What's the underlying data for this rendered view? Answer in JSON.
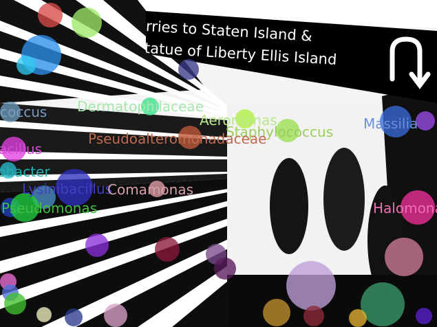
{
  "scene": {
    "background_color": "#ffffff",
    "foreground_color": "#000000"
  },
  "sign": {
    "line1": "rries to Staten Island &",
    "line2": "tatue of Liberty  Ellis Island",
    "arrow_icon": "u-turn-arrow-icon"
  },
  "labels": [
    {
      "text": "coccus",
      "color": "#7a9cc0"
    },
    {
      "text": "Dermatophilaceae",
      "color": "#a8e6b0"
    },
    {
      "text": "Aeromonas",
      "color": "#b8e88a"
    },
    {
      "text": "Staphylococcus",
      "color": "#9bcf5a"
    },
    {
      "text": "Pseudoalteromonadaceae",
      "color": "#c06a50"
    },
    {
      "text": "Massilia",
      "color": "#6a8ed8"
    },
    {
      "text": "acillus",
      "color": "#d84ad8"
    },
    {
      "text": "obacter",
      "color": "#22b0b0"
    },
    {
      "text": "Lysinibacillus",
      "color": "#4040c0"
    },
    {
      "text": "Comamonas",
      "color": "#d8a0a8"
    },
    {
      "text": "Pseudomonas",
      "color": "#40c040"
    },
    {
      "text": "Halomonas",
      "color": "#f070b0"
    }
  ],
  "bubbles": [
    {
      "color": "#d94a4a"
    },
    {
      "color": "#9ee86a"
    },
    {
      "color": "#2b8fe8"
    },
    {
      "color": "#30c8f0"
    },
    {
      "color": "#3a3a8a"
    },
    {
      "color": "#6a9ab8"
    },
    {
      "color": "#3ae08a"
    },
    {
      "color": "#b0f040"
    },
    {
      "color": "#c05a3a"
    },
    {
      "color": "#9ae050"
    },
    {
      "color": "#3a6ad8"
    },
    {
      "color": "#9a4ae8"
    },
    {
      "color": "#e040e0"
    },
    {
      "color": "#28b8c8"
    },
    {
      "color": "#3030c0"
    },
    {
      "color": "#5090c8"
    },
    {
      "color": "#2040c0"
    },
    {
      "color": "#20d040"
    },
    {
      "color": "#e0a0a8"
    },
    {
      "color": "#8a30d8"
    },
    {
      "color": "#8a1a3a"
    },
    {
      "color": "#7a4a8a"
    },
    {
      "color": "#5a1a5a"
    },
    {
      "color": "#f0309a"
    },
    {
      "color": "#d07a9a"
    },
    {
      "color": "#c0a0d8"
    },
    {
      "color": "#f070d8"
    },
    {
      "color": "#5070d8"
    },
    {
      "color": "#40c030"
    },
    {
      "color": "#f0f0c0"
    },
    {
      "color": "#2a3a8a"
    },
    {
      "color": "#d8a0c8"
    },
    {
      "color": "#c09030"
    },
    {
      "color": "#8a2a3a"
    },
    {
      "color": "#3a9a6a"
    },
    {
      "color": "#e0b030"
    },
    {
      "color": "#5a20d0"
    }
  ]
}
